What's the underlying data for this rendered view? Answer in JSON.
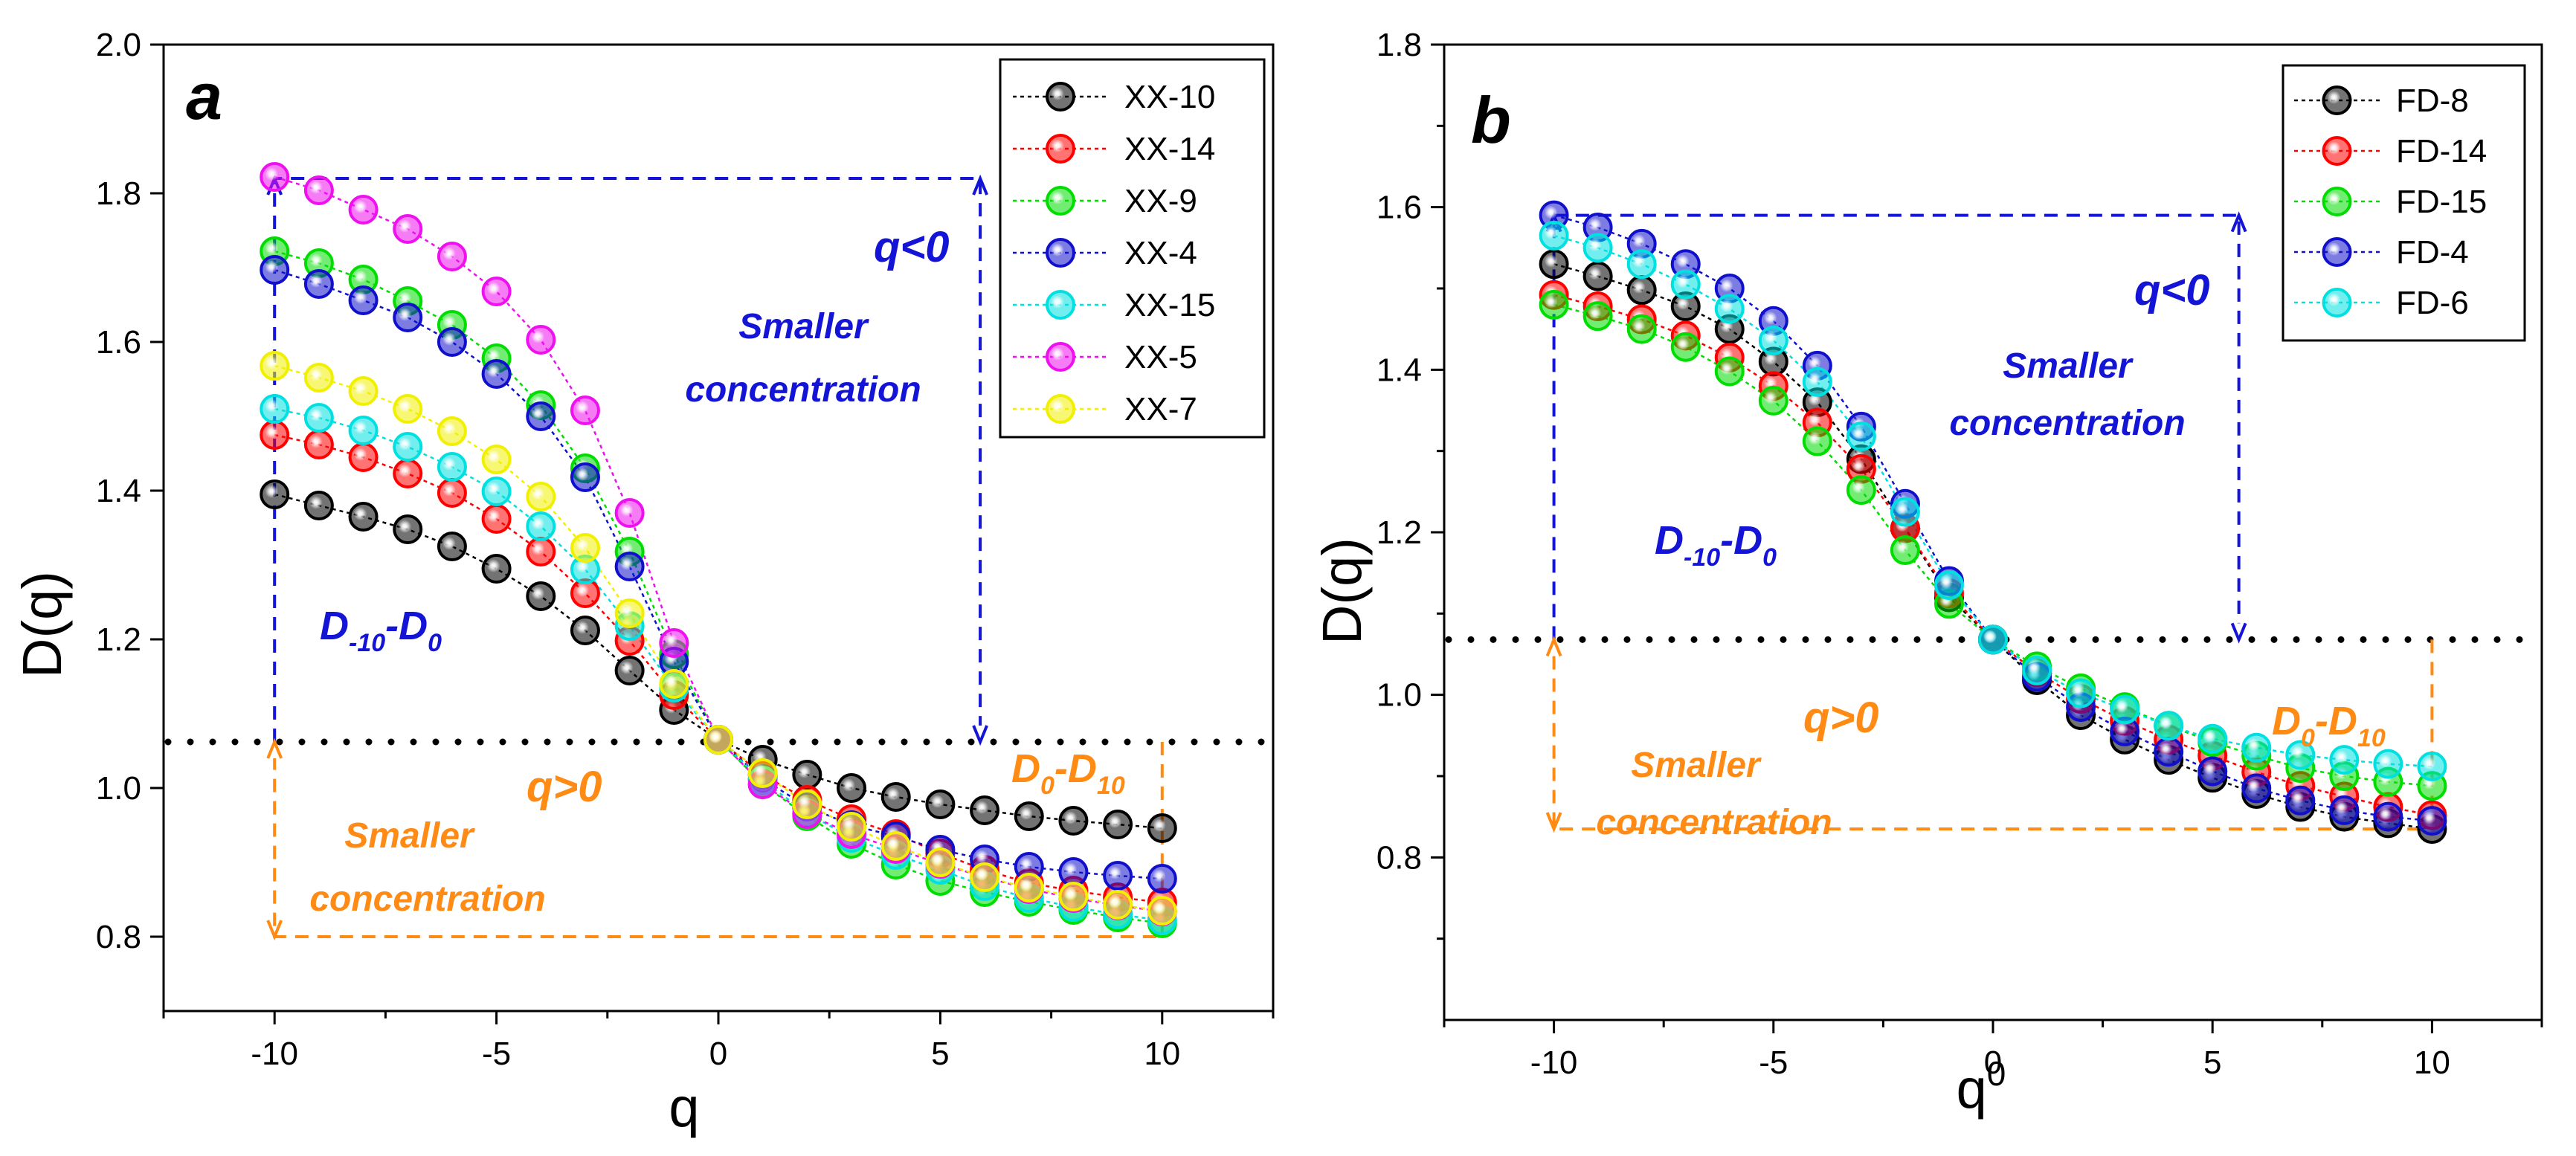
{
  "colors": {
    "XX-10": "#000000",
    "XX-14": "#ff0000",
    "XX-9": "#00dd00",
    "XX-4": "#1010cc",
    "XX-15": "#00e0e0",
    "XX-5": "#ee10ee",
    "XX-7": "#f0f000",
    "FD-8": "#000000",
    "FD-14": "#ff0000",
    "FD-15": "#00dd00",
    "FD-4": "#1010cc",
    "FD-6": "#00e0e0",
    "annotation_blue": "#1414d6",
    "annotation_orange": "#ff8a14"
  },
  "chart_data": [
    {
      "type": "scatter",
      "panel_label": "a",
      "xlabel": "q",
      "ylabel": "D(q)",
      "xlim": [
        -12.5,
        12.5
      ],
      "ylim": [
        0.7,
        2.0
      ],
      "xticks": [
        "-10",
        "-5",
        "0",
        "5",
        "10"
      ],
      "yticks": [
        "0.8",
        "1.0",
        "1.2",
        "1.4",
        "1.6",
        "1.8",
        "2.0"
      ],
      "x": [
        -10,
        -9,
        -8,
        -7,
        -6,
        -5,
        -4,
        -3,
        -2,
        -1,
        0,
        1,
        2,
        3,
        4,
        5,
        6,
        7,
        8,
        9,
        10
      ],
      "series": [
        {
          "name": "XX-10",
          "values": [
            1.395,
            1.38,
            1.365,
            1.348,
            1.325,
            1.295,
            1.258,
            1.212,
            1.158,
            1.105,
            1.065,
            1.038,
            1.018,
            1.0,
            0.988,
            0.978,
            0.97,
            0.962,
            0.956,
            0.951,
            0.946
          ]
        },
        {
          "name": "XX-14",
          "values": [
            1.475,
            1.462,
            1.445,
            1.423,
            1.397,
            1.362,
            1.318,
            1.262,
            1.198,
            1.125,
            1.065,
            1.018,
            0.984,
            0.958,
            0.938,
            0.912,
            0.89,
            0.872,
            0.862,
            0.853,
            0.846
          ]
        },
        {
          "name": "XX-9",
          "values": [
            1.722,
            1.706,
            1.684,
            1.655,
            1.623,
            1.578,
            1.515,
            1.43,
            1.318,
            1.18,
            1.065,
            1.005,
            0.962,
            0.925,
            0.897,
            0.875,
            0.86,
            0.847,
            0.836,
            0.826,
            0.818
          ]
        },
        {
          "name": "XX-4",
          "values": [
            1.697,
            1.678,
            1.656,
            1.633,
            1.6,
            1.557,
            1.5,
            1.418,
            1.298,
            1.17,
            1.065,
            1.012,
            0.975,
            0.95,
            0.935,
            0.917,
            0.904,
            0.894,
            0.887,
            0.882,
            0.878
          ]
        },
        {
          "name": "XX-15",
          "values": [
            1.51,
            1.498,
            1.481,
            1.459,
            1.432,
            1.399,
            1.352,
            1.294,
            1.218,
            1.135,
            1.065,
            1.01,
            0.966,
            0.933,
            0.91,
            0.89,
            0.868,
            0.852,
            0.84,
            0.83,
            0.822
          ]
        },
        {
          "name": "XX-5",
          "values": [
            1.822,
            1.804,
            1.778,
            1.752,
            1.715,
            1.668,
            1.603,
            1.508,
            1.37,
            1.195,
            1.065,
            1.005,
            0.965,
            0.938,
            0.918,
            0.898,
            0.88,
            0.864,
            0.852,
            0.842,
            0.834
          ]
        },
        {
          "name": "XX-7",
          "values": [
            1.568,
            1.552,
            1.534,
            1.51,
            1.48,
            1.442,
            1.392,
            1.323,
            1.235,
            1.14,
            1.065,
            1.02,
            0.978,
            0.948,
            0.922,
            0.9,
            0.88,
            0.866,
            0.854,
            0.843,
            0.835
          ]
        }
      ],
      "legend_entries": [
        "XX-10",
        "XX-14",
        "XX-9",
        "XX-4",
        "XX-15",
        "XX-5",
        "XX-7"
      ],
      "legend_position": "top-right",
      "reference_line_y": 1.062,
      "annotations": {
        "q_neg": "q<0",
        "neg_line1": "Smaller",
        "neg_line2": "concentration",
        "range_neg_main": "D",
        "range_neg_sub": "-10",
        "range_neg_sep": "-D",
        "range_neg_sub2": "0",
        "q_pos": "q>0",
        "pos_line1": "Smaller",
        "pos_line2": "concentration",
        "range_pos_main": "D",
        "range_pos_sub": "0",
        "range_pos_sep": "-D",
        "range_pos_sub2": "10"
      }
    },
    {
      "type": "scatter",
      "panel_label": "b",
      "xlabel": "q",
      "xlabel_suffix": "0",
      "ylabel": "D(q)",
      "xlim": [
        -12.5,
        12.5
      ],
      "ylim": [
        0.6,
        1.8
      ],
      "xticks": [
        "-10",
        "-5",
        "0",
        "5",
        "10"
      ],
      "yticks": [
        "0.8",
        "1.0",
        "1.2",
        "1.4",
        "1.6",
        "1.8"
      ],
      "x": [
        -10,
        -9,
        -8,
        -7,
        -6,
        -5,
        -4,
        -3,
        -2,
        -1,
        0,
        1,
        2,
        3,
        4,
        5,
        6,
        7,
        8,
        9,
        10
      ],
      "series": [
        {
          "name": "FD-8",
          "values": [
            1.53,
            1.515,
            1.498,
            1.478,
            1.45,
            1.41,
            1.36,
            1.29,
            1.205,
            1.12,
            1.068,
            1.018,
            0.975,
            0.945,
            0.92,
            0.898,
            0.878,
            0.862,
            0.85,
            0.842,
            0.835
          ]
        },
        {
          "name": "FD-14",
          "values": [
            1.492,
            1.478,
            1.462,
            1.442,
            1.415,
            1.38,
            1.335,
            1.278,
            1.205,
            1.125,
            1.068,
            1.028,
            0.995,
            0.968,
            0.945,
            0.925,
            0.905,
            0.888,
            0.875,
            0.862,
            0.852
          ]
        },
        {
          "name": "FD-15",
          "values": [
            1.48,
            1.466,
            1.45,
            1.428,
            1.398,
            1.362,
            1.312,
            1.252,
            1.178,
            1.112,
            1.068,
            1.035,
            1.008,
            0.985,
            0.962,
            0.942,
            0.925,
            0.91,
            0.9,
            0.893,
            0.888
          ]
        },
        {
          "name": "FD-4",
          "values": [
            1.59,
            1.575,
            1.555,
            1.53,
            1.5,
            1.46,
            1.405,
            1.33,
            1.235,
            1.14,
            1.068,
            1.022,
            0.985,
            0.955,
            0.93,
            0.906,
            0.885,
            0.87,
            0.858,
            0.85,
            0.845
          ]
        },
        {
          "name": "FD-6",
          "values": [
            1.565,
            1.55,
            1.53,
            1.505,
            1.475,
            1.436,
            1.385,
            1.318,
            1.225,
            1.135,
            1.068,
            1.03,
            1.002,
            0.982,
            0.962,
            0.946,
            0.935,
            0.926,
            0.92,
            0.915,
            0.912
          ]
        }
      ],
      "legend_entries": [
        "FD-8",
        "FD-14",
        "FD-15",
        "FD-4",
        "FD-6"
      ],
      "legend_position": "top-right",
      "reference_line_y": 1.068,
      "annotations": {
        "q_neg": "q<0",
        "neg_line1": "Smaller",
        "neg_line2": "concentration",
        "range_neg_main": "D",
        "range_neg_sub": "-10",
        "range_neg_sep": "-D",
        "range_neg_sub2": "0",
        "q_pos": "q>0",
        "pos_line1": "Smaller",
        "pos_line2": "concentration",
        "range_pos_main": "D",
        "range_pos_sub": "0",
        "range_pos_sep": "-D",
        "range_pos_sub2": "10"
      }
    }
  ]
}
